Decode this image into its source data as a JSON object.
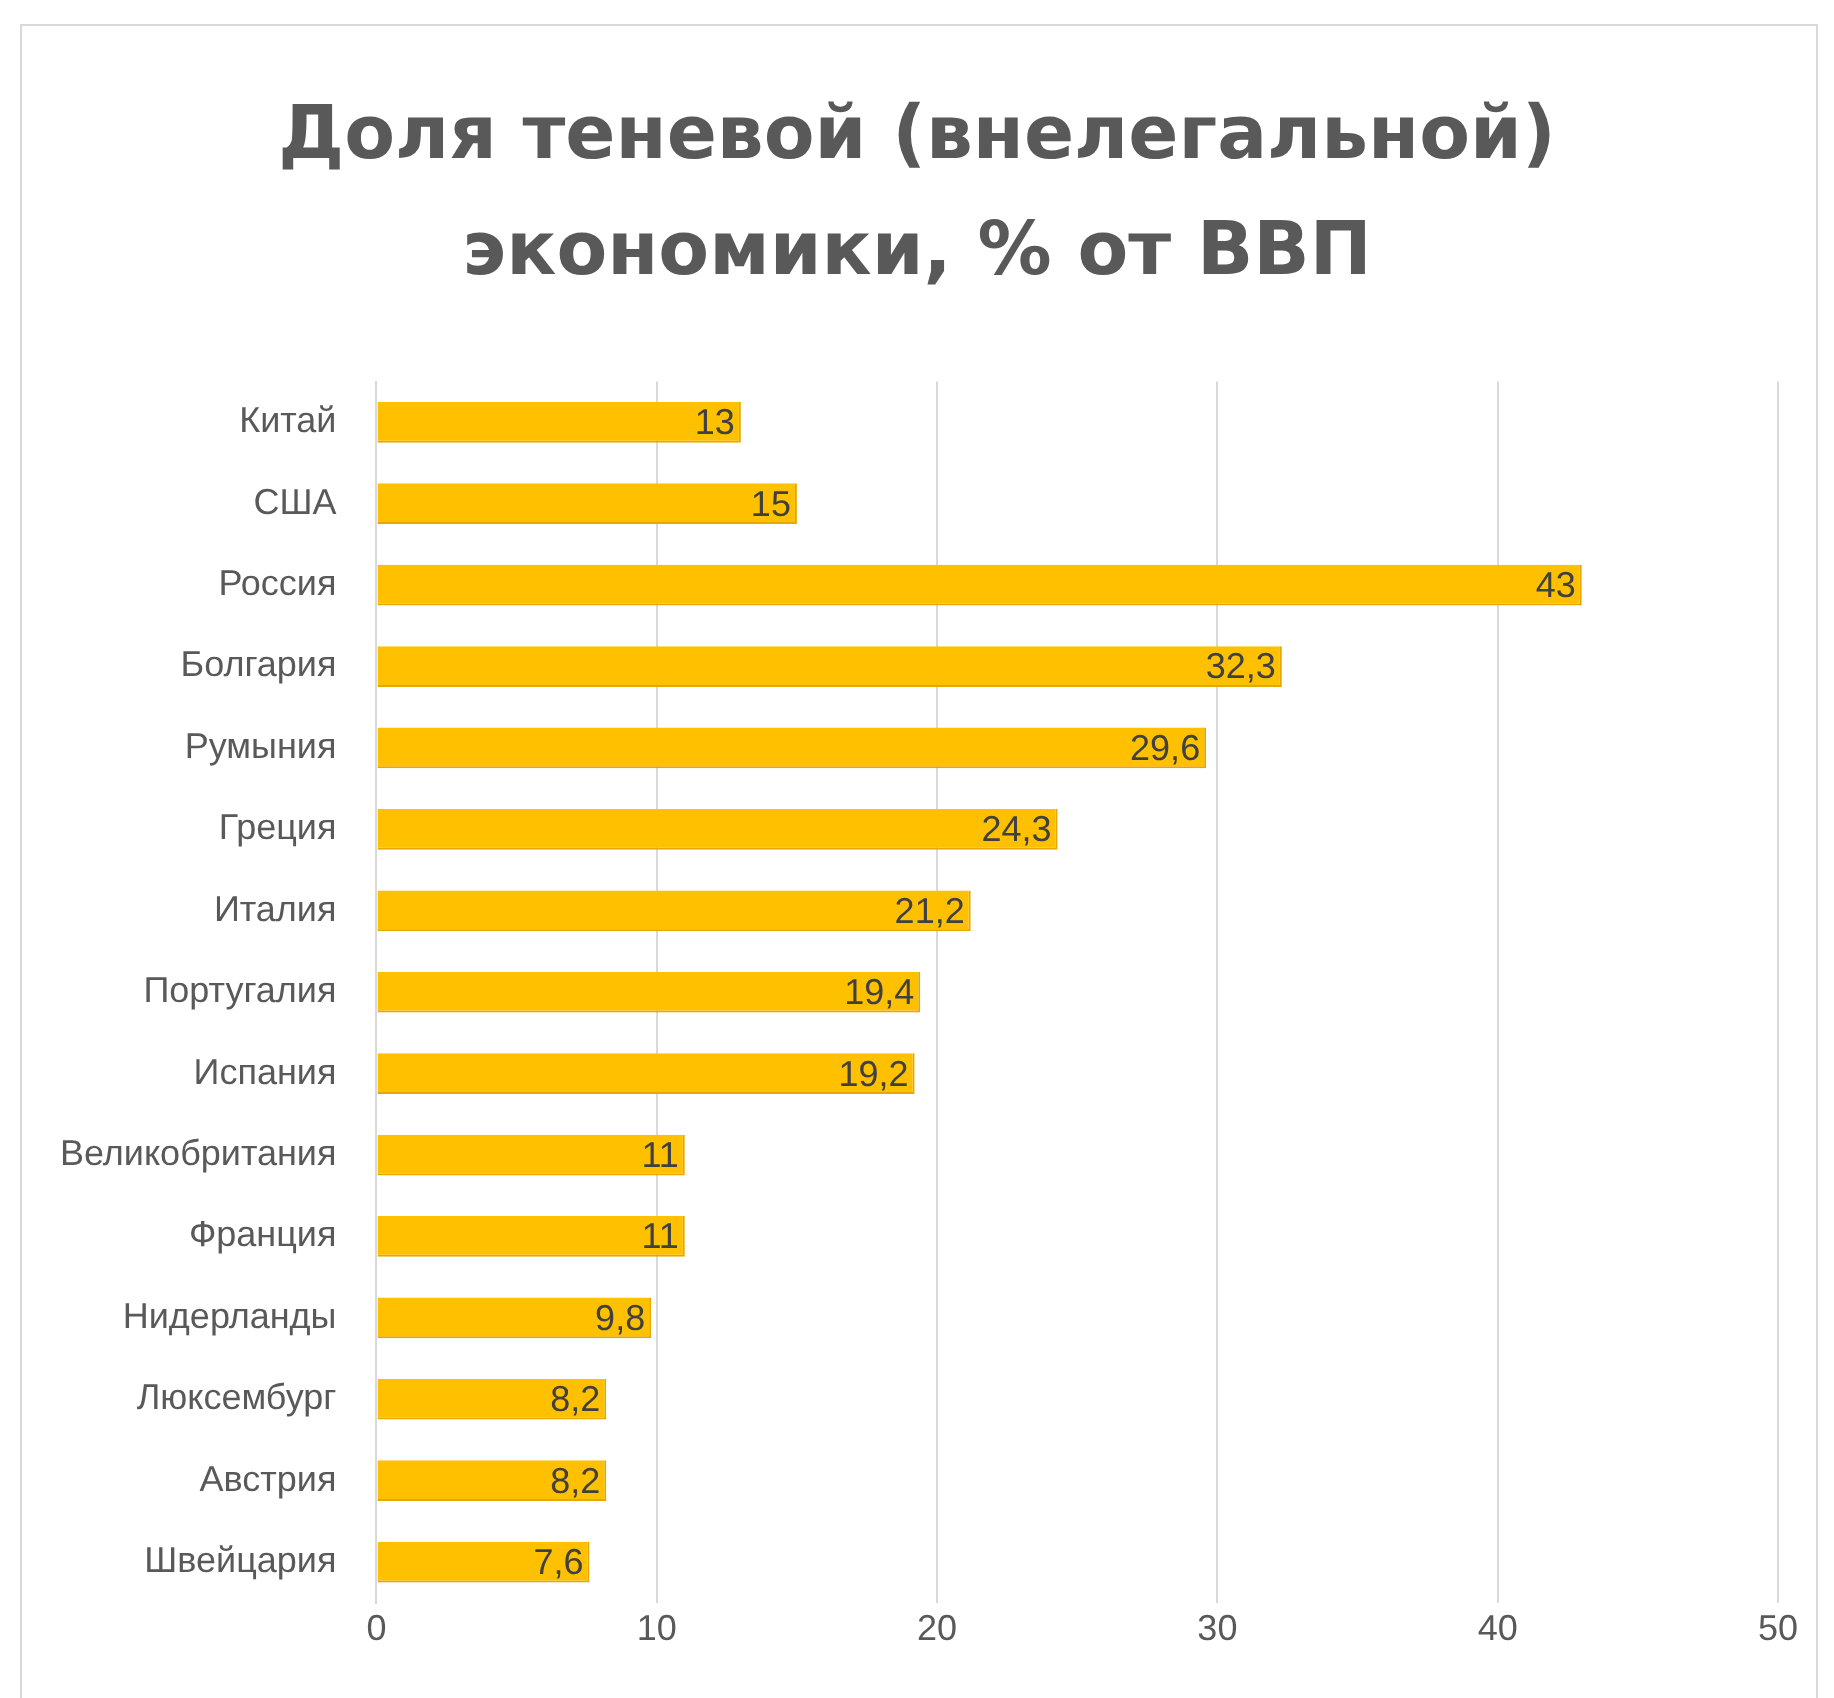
{
  "chart_data": {
    "type": "bar",
    "orientation": "horizontal",
    "title": "Доля теневой (внелегальной) экономики, % от ВВП",
    "categories": [
      "Китай",
      "США",
      "Россия",
      "Болгария",
      "Румыния",
      "Греция",
      "Италия",
      "Португалия",
      "Испания",
      "Великобритания",
      "Франция",
      "Нидерланды",
      "Люксембург",
      "Австрия",
      "Швейцария"
    ],
    "values": [
      13,
      15,
      43,
      32.3,
      29.6,
      24.3,
      21.2,
      19.4,
      19.2,
      11,
      11,
      9.8,
      8.2,
      8.2,
      7.6
    ],
    "value_labels": [
      "13",
      "15",
      "43",
      "32,3",
      "29,6",
      "24,3",
      "21,2",
      "19,4",
      "19,2",
      "11",
      "11",
      "9,8",
      "8,2",
      "8,2",
      "7,6"
    ],
    "color": "#ffc000",
    "xlim": [
      0,
      50
    ],
    "xticks": [
      0,
      10,
      20,
      30,
      40,
      50
    ],
    "grid": "x",
    "legend": false
  }
}
